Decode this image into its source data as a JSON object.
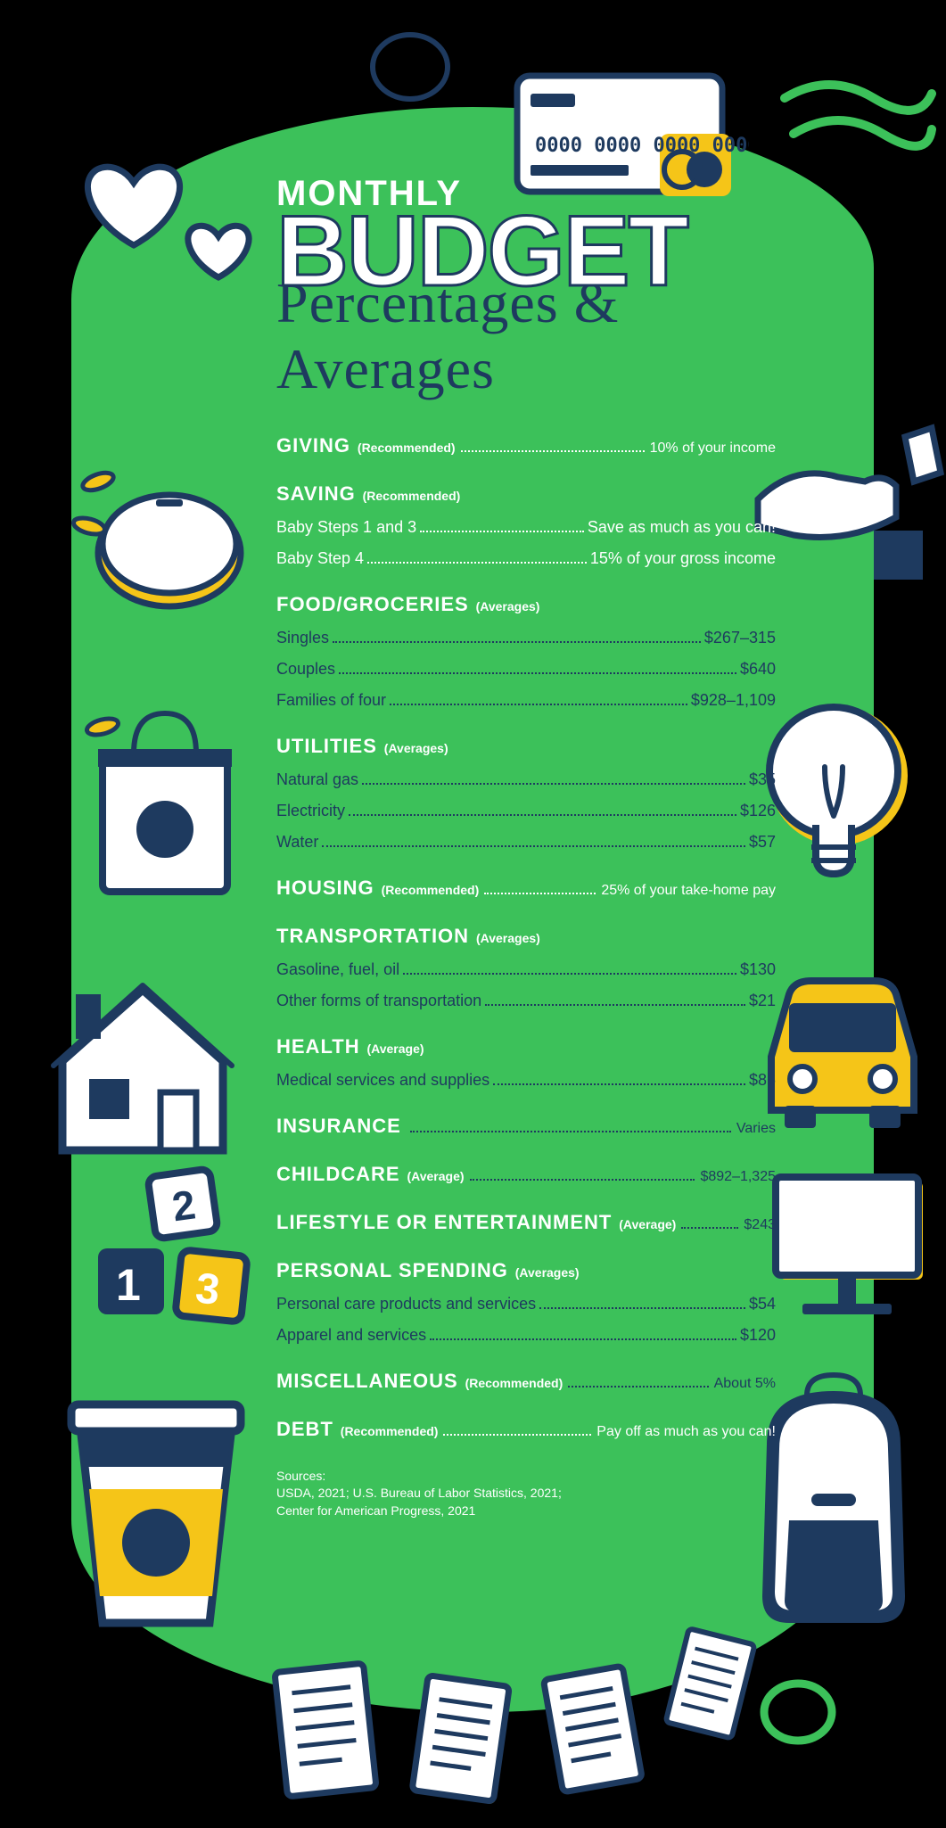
{
  "colors": {
    "bg": "#000000",
    "blob": "#3cc15a",
    "navy": "#1e3a5f",
    "yellow": "#f5c518",
    "white": "#ffffff"
  },
  "title": {
    "line1": "MONTHLY",
    "line2": "BUDGET",
    "line3": "Percentages & Averages"
  },
  "sections": [
    {
      "title": "GIVING",
      "note": "(Recommended)",
      "inline_value": "10% of your income",
      "items": []
    },
    {
      "title": "SAVING",
      "note": "(Recommended)",
      "items": [
        {
          "label": "Baby Steps 1 and 3",
          "value": "Save as much as you can!",
          "navy": false
        },
        {
          "label": "Baby Step 4",
          "value": "15% of your gross income",
          "navy": false
        }
      ]
    },
    {
      "title": "FOOD/GROCERIES",
      "note": "(Averages)",
      "items": [
        {
          "label": "Singles",
          "value": "$267–315",
          "navy": true
        },
        {
          "label": "Couples",
          "value": "$640",
          "navy": true
        },
        {
          "label": "Families of four",
          "value": "$928–1,109",
          "navy": true
        }
      ]
    },
    {
      "title": "UTILITIES",
      "note": "(Averages)",
      "items": [
        {
          "label": "Natural gas",
          "value": "$35",
          "navy": true
        },
        {
          "label": "Electricity",
          "value": "$126",
          "navy": true
        },
        {
          "label": "Water",
          "value": "$57",
          "navy": true
        }
      ]
    },
    {
      "title": "HOUSING",
      "note": "(Recommended)",
      "inline_value": "25% of your take-home pay",
      "items": []
    },
    {
      "title": "TRANSPORTATION",
      "note": "(Averages)",
      "items": [
        {
          "label": "Gasoline, fuel, oil",
          "value": "$130",
          "navy": true
        },
        {
          "label": "Other forms of transportation",
          "value": "$21",
          "navy": true
        }
      ]
    },
    {
      "title": "HEALTH",
      "note": "(Average)",
      "items": [
        {
          "label": "Medical services and supplies",
          "value": "$86",
          "navy": true
        }
      ]
    },
    {
      "title": "INSURANCE",
      "note": "",
      "inline_value": "Varies",
      "inline_navy": true,
      "items": []
    },
    {
      "title": "CHILDCARE",
      "note": "(Average)",
      "inline_value": "$892–1,325",
      "inline_navy": true,
      "items": []
    },
    {
      "title": "LIFESTYLE OR ENTERTAINMENT",
      "note": "(Average)",
      "inline_value": "$243",
      "inline_navy": true,
      "items": []
    },
    {
      "title": "PERSONAL SPENDING",
      "note": "(Averages)",
      "items": [
        {
          "label": "Personal care products and services",
          "value": "$54",
          "navy": true
        },
        {
          "label": "Apparel and services",
          "value": "$120",
          "navy": true
        }
      ]
    },
    {
      "title": "MISCELLANEOUS",
      "note": "(Recommended)",
      "inline_value": "About 5%",
      "inline_navy": true,
      "items": []
    },
    {
      "title": "DEBT",
      "note": "(Recommended)",
      "inline_value": "Pay off as much as you can!",
      "items": []
    }
  ],
  "sources": {
    "heading": "Sources:",
    "text": "USDA, 2021; U.S. Bureau of Labor Statistics, 2021;\nCenter for American Progress, 2021"
  }
}
